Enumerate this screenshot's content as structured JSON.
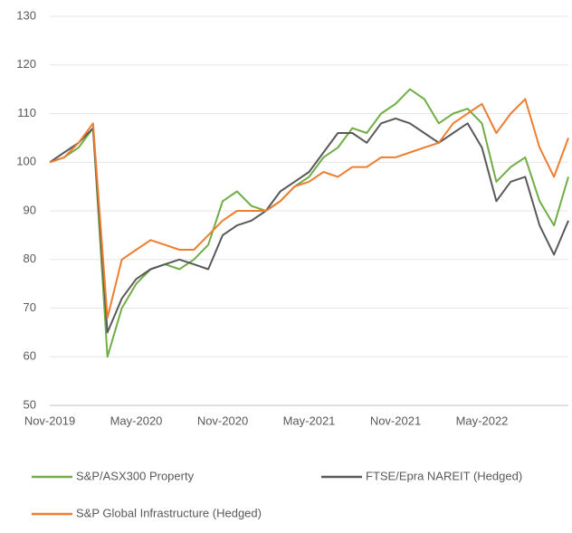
{
  "chart_data": {
    "type": "line",
    "categories": [
      "Nov-2019",
      null,
      null,
      null,
      null,
      null,
      "May-2020",
      null,
      null,
      null,
      null,
      null,
      "Nov-2020",
      null,
      null,
      null,
      null,
      null,
      "May-2021",
      null,
      null,
      null,
      null,
      null,
      "Nov-2021",
      null,
      null,
      null,
      null,
      null,
      "May-2022",
      null,
      null,
      null,
      null,
      null,
      null
    ],
    "series": [
      {
        "name": "S&P/ASX300 Property",
        "color": "#70ad47",
        "values": [
          100,
          101,
          103,
          107,
          60,
          70,
          75,
          78,
          79,
          78,
          80,
          83,
          92,
          94,
          91,
          90,
          92,
          95,
          97,
          101,
          103,
          107,
          106,
          110,
          112,
          115,
          113,
          108,
          110,
          111,
          108,
          96,
          99,
          101,
          92,
          87,
          97
        ]
      },
      {
        "name": "FTSE/Epra NAREIT (Hedged)",
        "color": "#595959",
        "values": [
          100,
          102,
          104,
          107,
          65,
          72,
          76,
          78,
          79,
          80,
          79,
          78,
          85,
          87,
          88,
          90,
          94,
          96,
          98,
          102,
          106,
          106,
          104,
          108,
          109,
          108,
          106,
          104,
          106,
          108,
          103,
          92,
          96,
          97,
          87,
          81,
          88
        ]
      },
      {
        "name": "S&P Global Infrastructure (Hedged)",
        "color": "#ed7d31",
        "values": [
          100,
          101,
          104,
          108,
          68,
          80,
          82,
          84,
          83,
          82,
          82,
          85,
          88,
          90,
          90,
          90,
          92,
          95,
          96,
          98,
          97,
          99,
          99,
          101,
          101,
          102,
          103,
          104,
          108,
          110,
          112,
          106,
          110,
          113,
          103,
          97,
          105
        ]
      }
    ],
    "ylim": [
      50,
      130
    ],
    "yticks": [
      50,
      60,
      70,
      80,
      90,
      100,
      110,
      120,
      130
    ],
    "grid": true
  }
}
